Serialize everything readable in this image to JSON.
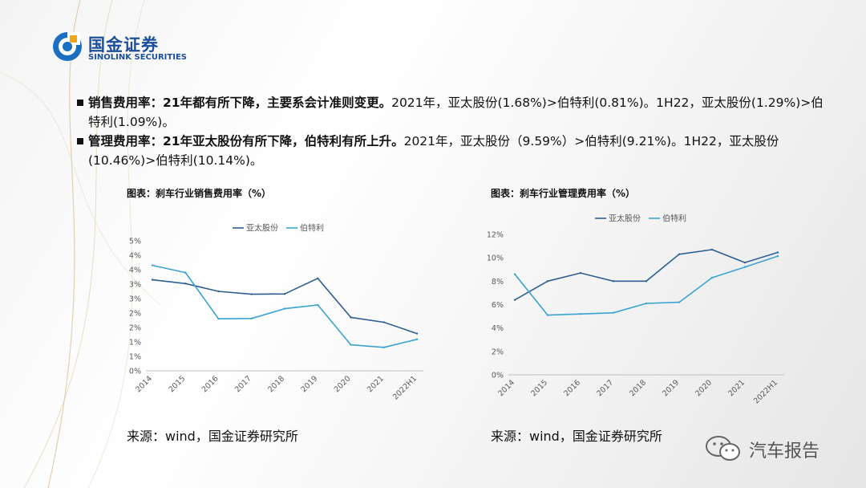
{
  "logo": {
    "name_cn": "国金证券",
    "name_en": "SINOLINK SECURITIES"
  },
  "bullets": [
    {
      "bold": "销售费用率：21年都有所下降，主要系会计准则变更。",
      "text": "2021年，亚太股份(1.68%)>伯特利(0.81%)。1H22，亚太股份(1.29%)>伯特利(1.09%)。"
    },
    {
      "bold": "管理费用率：21年亚太股份有所下降，伯特利有所上升。",
      "text": "2021年，亚太股份（9.59%）>伯特利(9.21%)。1H22，亚太股份(10.46%)>伯特利(10.14%)。"
    }
  ],
  "chart_data": [
    {
      "type": "line",
      "title": "图表：刹车行业销售费用率（%）",
      "categories": [
        "2014",
        "2015",
        "2016",
        "2017",
        "2018",
        "2019",
        "2020",
        "2021",
        "2022H1"
      ],
      "ylim": [
        0,
        4.5
      ],
      "yticks": [
        "0%",
        "1%",
        "1%",
        "2%",
        "2%",
        "3%",
        "3%",
        "4%",
        "4%",
        "5%"
      ],
      "grid": false,
      "legend_position": "top",
      "series": [
        {
          "name": "亚太股份",
          "color": "#2e5f93",
          "values": [
            3.15,
            3.02,
            2.75,
            2.65,
            2.66,
            3.2,
            1.85,
            1.68,
            1.29
          ]
        },
        {
          "name": "伯特利",
          "color": "#3aa3d2",
          "values": [
            3.65,
            3.4,
            1.8,
            1.81,
            2.15,
            2.28,
            0.9,
            0.81,
            1.09
          ]
        }
      ]
    },
    {
      "type": "line",
      "title": "图表：刹车行业管理费用率（%）",
      "categories": [
        "2014",
        "2015",
        "2016",
        "2017",
        "2018",
        "2019",
        "2020",
        "2021",
        "2022H1"
      ],
      "ylim": [
        0,
        12
      ],
      "yticks": [
        "0%",
        "2%",
        "4%",
        "6%",
        "8%",
        "10%",
        "12%"
      ],
      "grid": false,
      "legend_position": "top",
      "series": [
        {
          "name": "亚太股份",
          "color": "#2e5f93",
          "values": [
            6.4,
            8.0,
            8.7,
            8.0,
            8.0,
            10.3,
            10.7,
            9.59,
            10.46
          ]
        },
        {
          "name": "伯特利",
          "color": "#3aa3d2",
          "values": [
            8.6,
            5.1,
            5.2,
            5.3,
            6.1,
            6.2,
            8.3,
            9.21,
            10.14
          ]
        }
      ]
    }
  ],
  "sources": [
    "来源：wind，国金证券研究所",
    "来源：wind，国金证券研究所"
  ],
  "watermark": "汽车报告",
  "colors": {
    "brand": "#1b4f9c",
    "series1": "#2e5f93",
    "series2": "#3aa3d2"
  }
}
